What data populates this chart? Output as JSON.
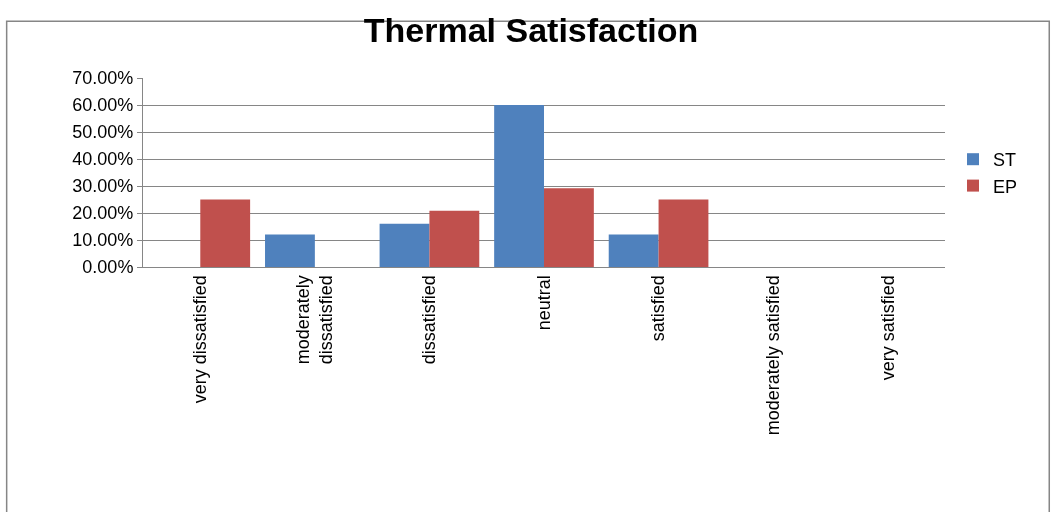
{
  "chart_data": {
    "type": "bar",
    "title": "Thermal Satisfaction",
    "categories": [
      "very dissatisfied",
      "moderately dissatisfied",
      "dissatisfied",
      "neutral",
      "satisfied",
      "moderately satisfied",
      "very satisfied"
    ],
    "series": [
      {
        "name": "ST",
        "color": "#4f81bd",
        "values": [
          0,
          12,
          16,
          60,
          12,
          0,
          0
        ]
      },
      {
        "name": "EP",
        "color": "#c0504d",
        "values": [
          25,
          0,
          20.8,
          29.2,
          25,
          0,
          0
        ]
      }
    ],
    "ylim": [
      0,
      70
    ],
    "yticks": [
      {
        "value": 0,
        "label": "0.00%"
      },
      {
        "value": 10,
        "label": "10.00%"
      },
      {
        "value": 20,
        "label": "20.00%"
      },
      {
        "value": 30,
        "label": "30.00%"
      },
      {
        "value": 40,
        "label": "40.00%"
      },
      {
        "value": 50,
        "label": "50.00%"
      },
      {
        "value": 60,
        "label": "60.00%"
      },
      {
        "value": 70,
        "label": "70.00%"
      }
    ],
    "grid": "y",
    "legend": "right"
  }
}
